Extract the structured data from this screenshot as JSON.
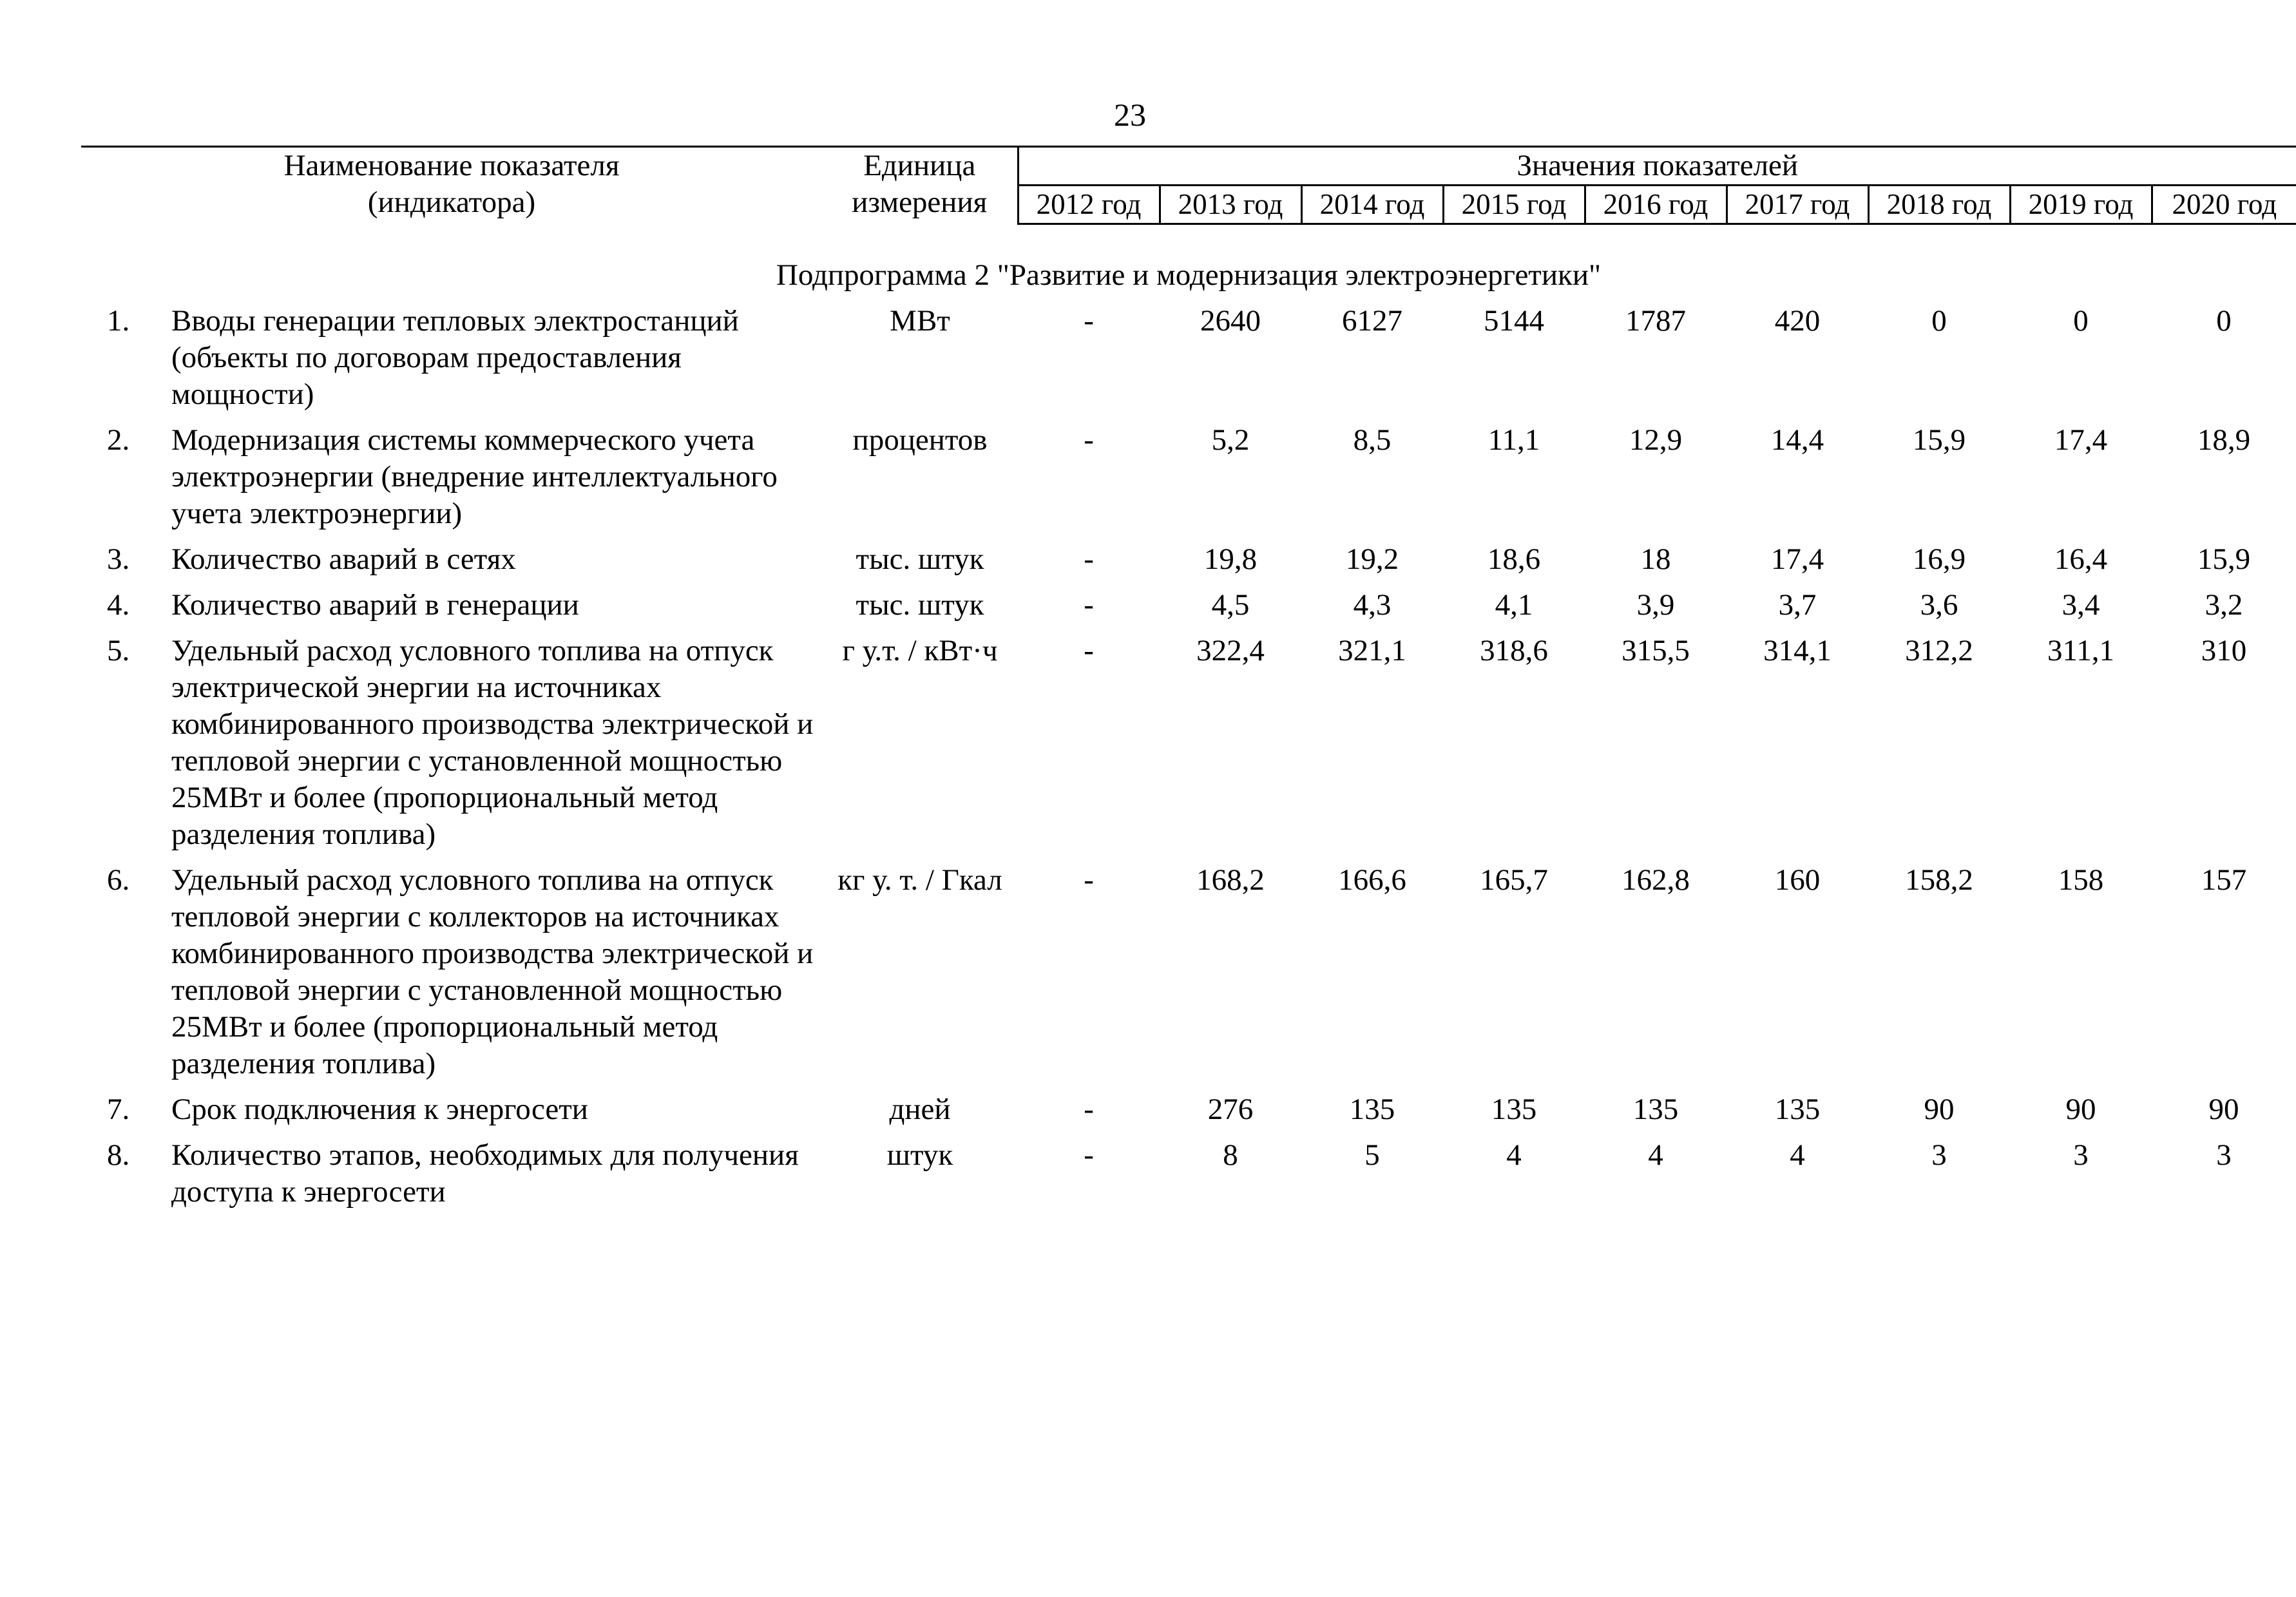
{
  "page_number": "23",
  "header": {
    "name_line1": "Наименование показателя",
    "name_line2": "(индикатора)",
    "unit_line1": "Единица",
    "unit_line2": "измерения",
    "values_title": "Значения показателей",
    "years": [
      "2012 год",
      "2013 год",
      "2014 год",
      "2015 год",
      "2016 год",
      "2017 год",
      "2018 год",
      "2019 год",
      "2020 год"
    ]
  },
  "subprogram_title": "Подпрограмма 2 \"Развитие и модернизация электроэнергетики\"",
  "rows": [
    {
      "num": "1.",
      "name": "Вводы генерации тепловых электростанций (объекты по договорам предоставления мощности)",
      "unit": "МВт",
      "values": [
        "-",
        "2640",
        "6127",
        "5144",
        "1787",
        "420",
        "0",
        "0",
        "0"
      ]
    },
    {
      "num": "2.",
      "name": "Модернизация системы коммерческого учета электроэнергии (внедрение интеллектуального учета электроэнергии)",
      "unit": "процентов",
      "values": [
        "-",
        "5,2",
        "8,5",
        "11,1",
        "12,9",
        "14,4",
        "15,9",
        "17,4",
        "18,9"
      ]
    },
    {
      "num": "3.",
      "name": "Количество аварий в сетях",
      "unit": "тыс. штук",
      "values": [
        "-",
        "19,8",
        "19,2",
        "18,6",
        "18",
        "17,4",
        "16,9",
        "16,4",
        "15,9"
      ]
    },
    {
      "num": "4.",
      "name": "Количество аварий в генерации",
      "unit": "тыс. штук",
      "values": [
        "-",
        "4,5",
        "4,3",
        "4,1",
        "3,9",
        "3,7",
        "3,6",
        "3,4",
        "3,2"
      ]
    },
    {
      "num": "5.",
      "name": "Удельный расход условного топлива на отпуск электрической энергии на источниках комбинированного производства электрической и тепловой энергии с установленной мощностью 25МВт и более (пропорциональный метод разделения топлива)",
      "unit": "г у.т. / кВт·ч",
      "values": [
        "-",
        "322,4",
        "321,1",
        "318,6",
        "315,5",
        "314,1",
        "312,2",
        "311,1",
        "310"
      ]
    },
    {
      "num": "6.",
      "name": "Удельный расход условного топлива на отпуск тепловой энергии с коллекторов на источниках комбинированного производства электрической и тепловой энергии с установленной мощностью 25МВт и более (пропорциональный метод разделения топлива)",
      "unit": "кг у. т. / Гкал",
      "values": [
        "-",
        "168,2",
        "166,6",
        "165,7",
        "162,8",
        "160",
        "158,2",
        "158",
        "157"
      ]
    },
    {
      "num": "7.",
      "name": "Срок подключения к энергосети",
      "unit": "дней",
      "values": [
        "-",
        "276",
        "135",
        "135",
        "135",
        "135",
        "90",
        "90",
        "90"
      ]
    },
    {
      "num": "8.",
      "name": "Количество этапов, необходимых для получения доступа к энергосети",
      "unit": "штук",
      "values": [
        "-",
        "8",
        "5",
        "4",
        "4",
        "4",
        "3",
        "3",
        "3"
      ]
    }
  ]
}
